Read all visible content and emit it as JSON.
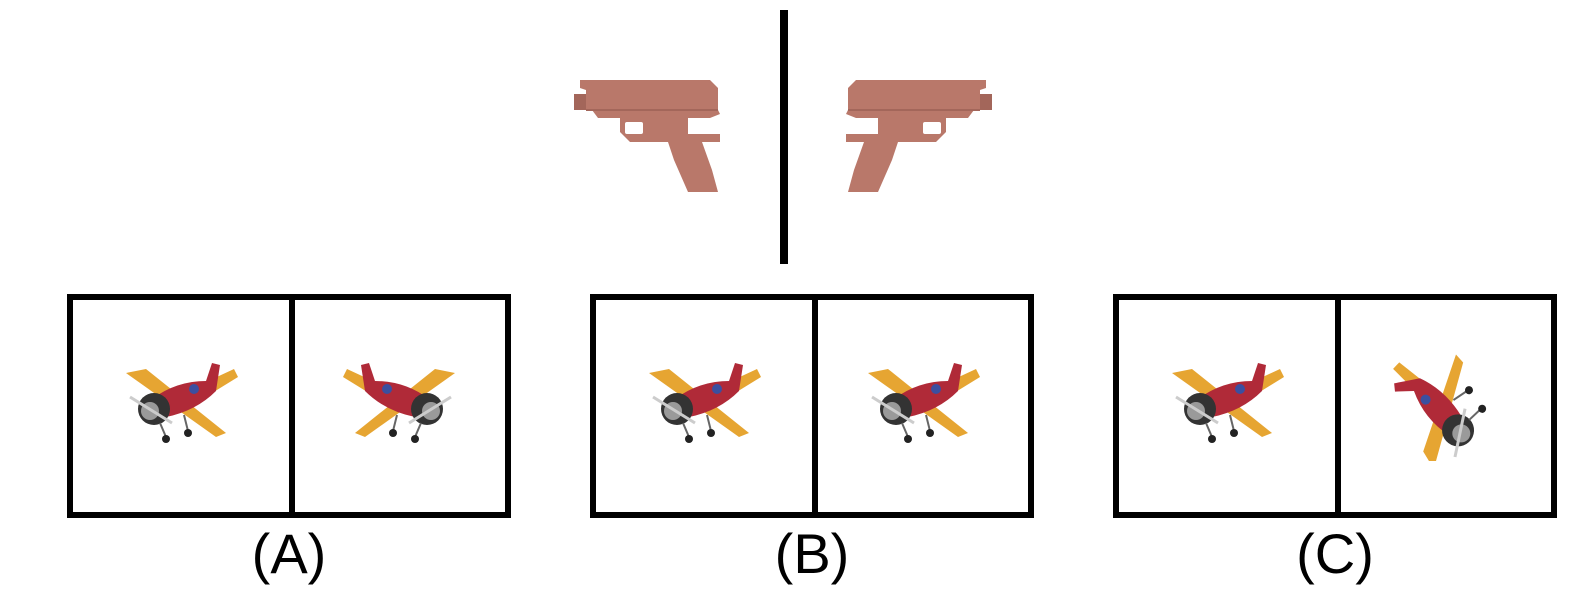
{
  "colors": {
    "gun": "#b9786a",
    "gun_shade": "#a3665a",
    "plane_body": "#b02a38",
    "plane_wing": "#e6a532",
    "plane_engine": "#333333"
  },
  "reference": {
    "icon": "pistol-icon",
    "mirror": "vertical-line"
  },
  "options": [
    {
      "label": "(A)",
      "left_icon": "biplane-icon",
      "right_icon": "biplane-mirrored-icon"
    },
    {
      "label": "(B)",
      "left_icon": "biplane-icon",
      "right_icon": "biplane-icon"
    },
    {
      "label": "(C)",
      "left_icon": "biplane-icon",
      "right_icon": "biplane-rotated-icon"
    }
  ]
}
